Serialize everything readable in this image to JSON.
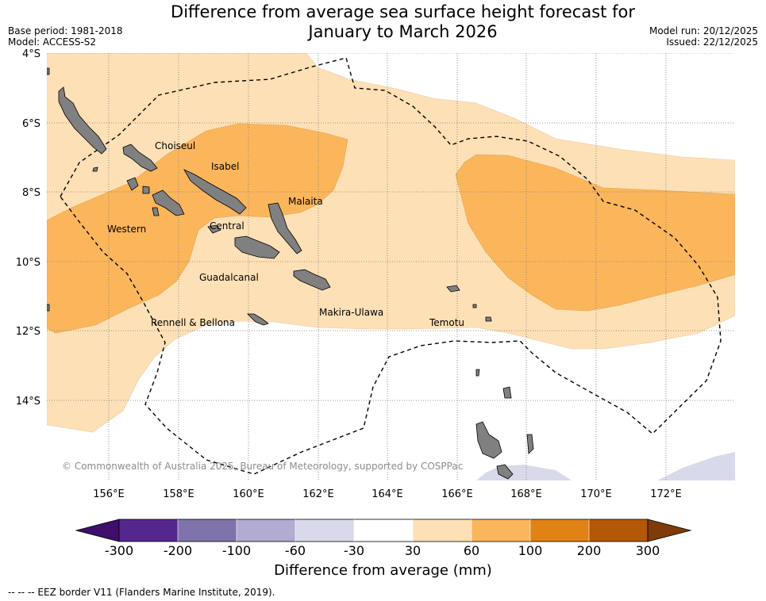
{
  "title_line1": "Difference from average sea surface height forecast for",
  "title_line2": "January to March 2026",
  "base_period": "Base period: 1981-2018",
  "model": "Model: ACCESS-S2",
  "model_run": "Model run: 20/12/2025",
  "issued": "Issued: 22/12/2025",
  "lat_labels": [
    "4°S",
    "6°S",
    "8°S",
    "10°S",
    "12°S",
    "14°S"
  ],
  "lon_labels": [
    "156°E",
    "158°E",
    "160°E",
    "162°E",
    "164°E",
    "166°E",
    "168°E",
    "170°E",
    "172°E"
  ],
  "places": {
    "choiseul": "Choiseul",
    "isabel": "Isabel",
    "malaita": "Malaita",
    "western": "Western",
    "central": "Central",
    "guadalcanal": "Guadalcanal",
    "makira": "Makira-Ulawa",
    "rennell": "Rennell & Bellona",
    "temotu": "Temotu"
  },
  "copyright": "© Commonwealth of Australia 2025, Bureau of Meteorology, supported by COSPPac",
  "colorbar": {
    "title": "Difference from average (mm)",
    "ticks": [
      "-300",
      "-200",
      "-100",
      "-60",
      "-30",
      "30",
      "60",
      "100",
      "200",
      "300"
    ],
    "colors": [
      "#3f0f6b",
      "#54278f",
      "#8073ac",
      "#b2abd2",
      "#d8daeb",
      "#ffffff",
      "#fee0b6",
      "#fbb65c",
      "#e08214",
      "#b35806",
      "#7f3b08"
    ]
  },
  "footer": "--  --  -- EEZ border V11 (Flanders Marine Institute, 2019)."
}
